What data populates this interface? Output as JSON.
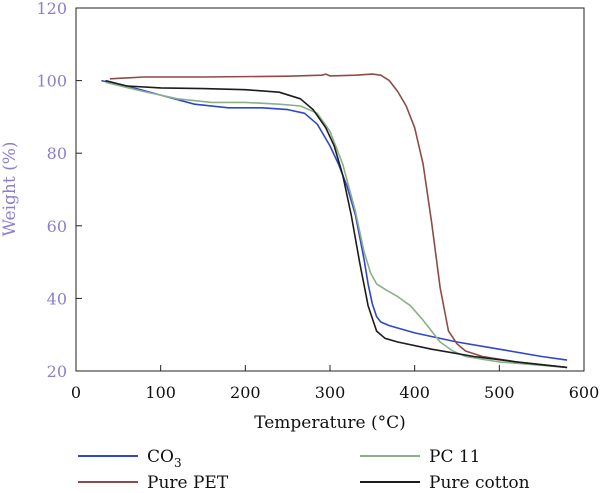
{
  "chart_data": {
    "type": "line",
    "title": "",
    "xlabel": "Temperature (°C)",
    "ylabel": "Weight (%)",
    "xlim": [
      0,
      600
    ],
    "ylim": [
      20,
      120
    ],
    "xticks": [
      0,
      100,
      200,
      300,
      400,
      500,
      600
    ],
    "yticks": [
      20,
      40,
      60,
      80,
      100,
      120
    ],
    "grid": false,
    "legend_position": "bottom",
    "series": [
      {
        "name": "CO3",
        "legend_main": "CO",
        "legend_sub": "3",
        "color": "#2f46c8",
        "x": [
          30,
          60,
          100,
          140,
          180,
          220,
          250,
          270,
          285,
          300,
          310,
          320,
          330,
          340,
          345,
          350,
          355,
          360,
          370,
          400,
          450,
          500,
          550,
          580
        ],
        "y": [
          100,
          98.5,
          96,
          93.5,
          92.5,
          92.5,
          92,
          91,
          88,
          82,
          77,
          71,
          63,
          51,
          44,
          38.5,
          35,
          33.5,
          32.5,
          30.5,
          28,
          26,
          24,
          23
        ]
      },
      {
        "name": "Pure PET",
        "legend_main": "Pure PET",
        "legend_sub": "",
        "color": "#8e4c46",
        "x": [
          40,
          80,
          150,
          250,
          290,
          295,
          300,
          330,
          350,
          360,
          370,
          380,
          390,
          400,
          410,
          420,
          430,
          440,
          450,
          460,
          480,
          520,
          580
        ],
        "y": [
          100.5,
          101,
          101,
          101.2,
          101.5,
          101.8,
          101.3,
          101.5,
          101.8,
          101.5,
          100,
          97,
          93,
          87,
          77,
          61,
          43,
          31,
          27.5,
          25.5,
          24,
          22.5,
          21
        ]
      },
      {
        "name": "PC 11",
        "legend_main": "PC 11",
        "legend_sub": "",
        "color": "#8ab08a",
        "x": [
          35,
          80,
          120,
          160,
          200,
          240,
          265,
          285,
          300,
          315,
          330,
          340,
          348,
          355,
          365,
          380,
          395,
          410,
          420,
          430,
          445,
          460,
          500,
          580
        ],
        "y": [
          99.5,
          97,
          95,
          94,
          94,
          93.5,
          93,
          91,
          86,
          77,
          64,
          53,
          47,
          44,
          42.5,
          40.5,
          38,
          34,
          31,
          28,
          25.5,
          24,
          22.5,
          21
        ]
      },
      {
        "name": "Pure cotton",
        "legend_main": "Pure cotton",
        "legend_sub": "",
        "color": "#1c1c1c",
        "x": [
          35,
          60,
          100,
          150,
          200,
          240,
          265,
          280,
          295,
          305,
          315,
          325,
          335,
          345,
          355,
          365,
          380,
          420,
          470,
          520,
          580
        ],
        "y": [
          100,
          98.5,
          98,
          97.8,
          97.5,
          96.8,
          95,
          92,
          87,
          82,
          74,
          63,
          50,
          38,
          31,
          29,
          28,
          26,
          24,
          22.5,
          21
        ]
      }
    ]
  }
}
